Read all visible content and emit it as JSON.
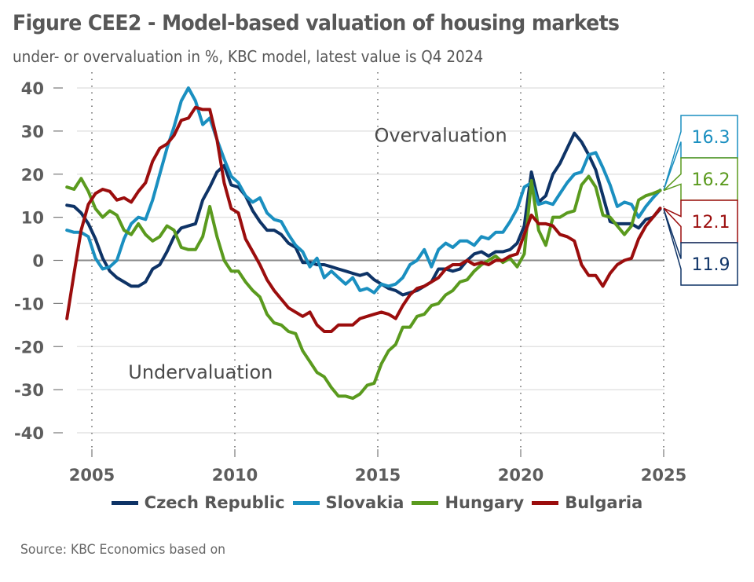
{
  "header": {
    "title": "Figure CEE2 - Model-based valuation of housing markets",
    "subtitle": "under- or overvaluation in %, KBC model, latest value is Q4 2024"
  },
  "footer": {
    "source": "Source: KBC Economics based on"
  },
  "chart_data": {
    "type": "line",
    "title": "Figure CEE2 - Model-based valuation of housing markets",
    "subtitle": "under- or overvaluation in %, KBC model, latest value is Q4 2024",
    "xlabel": "",
    "ylabel": "",
    "frequency": "quarterly",
    "x_start": "2004Q1",
    "x_end": "2024Q4",
    "xlim": [
      2004,
      2025
    ],
    "ylim": [
      -40,
      40
    ],
    "yticks": [
      40,
      30,
      20,
      10,
      0,
      -10,
      -20,
      -30,
      -40
    ],
    "ytick_labels": [
      "40",
      "30",
      "20",
      "10",
      "0",
      "-10",
      "-20",
      "-30",
      "-40"
    ],
    "xticks": [
      2005,
      2010,
      2015,
      2020,
      2025
    ],
    "xtick_labels": [
      "2005",
      "2010",
      "2015",
      "2020",
      "2025"
    ],
    "grid": "horizontal solid, vertical dotted at x ticks",
    "legend_position": "bottom",
    "annotations": [
      {
        "text": "Overvaluation",
        "x": 2017.2,
        "y": 29
      },
      {
        "text": "Undervaluation",
        "x": 2008.8,
        "y": -26
      }
    ],
    "series": [
      {
        "name": "Czech Republic",
        "color": "#0e3366",
        "last_value_label": "11.9",
        "values": [
          12.8,
          12.5,
          11,
          8.5,
          5,
          0.5,
          -2.5,
          -4,
          -5,
          -6,
          -6,
          -5,
          -2,
          -1,
          2,
          5.5,
          7.5,
          8,
          8.5,
          14,
          17,
          20.5,
          22,
          17.5,
          17,
          15,
          11.5,
          9,
          7,
          7,
          6,
          4,
          3,
          -0.5,
          -0.5,
          -1,
          -1,
          -1.5,
          -2,
          -2.5,
          -3,
          -3.5,
          -3,
          -4.5,
          -5.5,
          -6.5,
          -7,
          -8,
          -7.5,
          -7,
          -6,
          -5,
          -2,
          -2,
          -2.5,
          -2,
          0,
          1.5,
          2,
          1,
          2,
          2,
          2.5,
          4,
          8,
          20.5,
          13.5,
          15,
          20,
          22.5,
          26,
          29.5,
          27.5,
          24.5,
          21,
          15,
          9,
          8.5,
          8.5,
          8.5,
          7.5,
          9.5,
          10,
          11.9
        ]
      },
      {
        "name": "Slovakia",
        "color": "#1a8fc0",
        "last_value_label": "16.3",
        "values": [
          7,
          6.5,
          6.5,
          5.5,
          0.5,
          -2,
          -1.5,
          0,
          5,
          8.5,
          10,
          9.5,
          14,
          20,
          26,
          31,
          37,
          40,
          37,
          31.5,
          33,
          28,
          23.5,
          19.5,
          18,
          15,
          13.5,
          14.5,
          11,
          9.5,
          9,
          6,
          3.5,
          2,
          -1.5,
          0.5,
          -4,
          -2.5,
          -4,
          -5.5,
          -4,
          -7,
          -6.5,
          -7.5,
          -5.5,
          -6,
          -5.5,
          -4,
          -1,
          0,
          2.5,
          -1.5,
          2.5,
          4,
          3,
          4.5,
          4.5,
          3.5,
          5.5,
          5,
          6.5,
          6.5,
          9,
          12,
          17,
          18,
          13,
          13.5,
          13,
          15.5,
          18,
          20,
          20.5,
          24.5,
          25,
          21.5,
          17.5,
          12.5,
          13.5,
          13,
          10,
          12.5,
          14.5,
          16.3
        ]
      },
      {
        "name": "Hungary",
        "color": "#5a9a1e",
        "last_value_label": "16.2",
        "values": [
          17,
          16.5,
          19,
          16,
          12,
          10,
          11.5,
          10.5,
          7,
          6,
          8.5,
          6,
          4.5,
          5.5,
          8,
          7,
          3,
          2.5,
          2.5,
          5.5,
          12.5,
          5.5,
          0,
          -2.5,
          -2.5,
          -5,
          -7,
          -8.5,
          -12.5,
          -14.5,
          -15,
          -16.5,
          -17,
          -21,
          -23.5,
          -26,
          -27,
          -29.5,
          -31.5,
          -31.5,
          -32,
          -31,
          -29,
          -28.5,
          -24,
          -21,
          -19.5,
          -15.5,
          -15.5,
          -13,
          -12.5,
          -10.5,
          -10,
          -8,
          -7,
          -5,
          -4.5,
          -2.5,
          -1,
          0,
          1,
          -0.5,
          0.5,
          -1.5,
          1.5,
          18.5,
          7,
          3.5,
          10,
          10,
          11,
          11.5,
          17.5,
          19.5,
          17,
          10.5,
          10,
          8,
          6,
          8,
          14,
          15,
          15.5,
          16.2
        ]
      },
      {
        "name": "Bulgaria",
        "color": "#9b0d0d",
        "last_value_label": "12.1",
        "values": [
          -13.5,
          -3,
          7,
          13,
          15.5,
          16.5,
          16,
          14,
          14.5,
          13.5,
          16,
          18,
          23,
          26,
          27,
          29,
          32.5,
          33,
          35.5,
          35,
          35,
          28,
          18,
          12,
          11,
          5,
          2,
          -1,
          -4.5,
          -7,
          -9,
          -11,
          -12,
          -13,
          -12,
          -15,
          -16.5,
          -16.5,
          -15,
          -15,
          -15,
          -13.5,
          -13,
          -12.5,
          -12,
          -12.5,
          -13.5,
          -10.5,
          -8,
          -6.5,
          -6,
          -5,
          -4,
          -2,
          -1,
          -1,
          0,
          -1,
          -0.5,
          -1,
          0,
          0,
          1,
          1.5,
          6,
          10.5,
          8.5,
          8.5,
          8,
          6,
          5.5,
          4.5,
          -1,
          -3.5,
          -3.5,
          -6,
          -3,
          -1,
          0,
          0.5,
          5,
          8,
          10,
          12.1
        ]
      }
    ]
  }
}
